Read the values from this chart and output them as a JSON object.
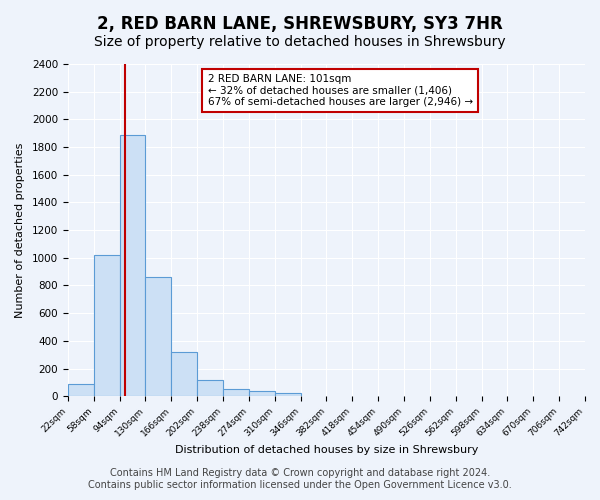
{
  "title": "2, RED BARN LANE, SHREWSBURY, SY3 7HR",
  "subtitle": "Size of property relative to detached houses in Shrewsbury",
  "xlabel": "Distribution of detached houses by size in Shrewsbury",
  "ylabel": "Number of detached properties",
  "bin_edges": [
    22,
    58,
    94,
    130,
    166,
    202,
    238,
    274,
    310,
    346,
    382,
    418,
    454,
    490,
    526,
    562,
    598,
    634,
    670,
    706,
    742
  ],
  "bin_counts": [
    90,
    1020,
    1890,
    860,
    320,
    115,
    55,
    35,
    25,
    0,
    0,
    0,
    0,
    0,
    0,
    0,
    0,
    0,
    0,
    0
  ],
  "bar_color": "#cce0f5",
  "bar_edge_color": "#5b9bd5",
  "red_line_x": 101,
  "annotation_title": "2 RED BARN LANE: 101sqm",
  "annotation_line1": "← 32% of detached houses are smaller (1,406)",
  "annotation_line2": "67% of semi-detached houses are larger (2,946) →",
  "annotation_box_color": "#ffffff",
  "annotation_box_edge": "#c00000",
  "red_line_color": "#c00000",
  "ylim": [
    0,
    2400
  ],
  "yticks": [
    0,
    200,
    400,
    600,
    800,
    1000,
    1200,
    1400,
    1600,
    1800,
    2000,
    2200,
    2400
  ],
  "tick_labels": [
    "22sqm",
    "58sqm",
    "94sqm",
    "130sqm",
    "166sqm",
    "202sqm",
    "238sqm",
    "274sqm",
    "310sqm",
    "346sqm",
    "382sqm",
    "418sqm",
    "454sqm",
    "490sqm",
    "526sqm",
    "562sqm",
    "598sqm",
    "634sqm",
    "670sqm",
    "706sqm",
    "742sqm"
  ],
  "footer_line1": "Contains HM Land Registry data © Crown copyright and database right 2024.",
  "footer_line2": "Contains public sector information licensed under the Open Government Licence v3.0.",
  "background_color": "#eef3fb",
  "plot_bg_color": "#eef3fb",
  "grid_color": "#ffffff",
  "title_fontsize": 12,
  "subtitle_fontsize": 10,
  "footer_fontsize": 7
}
